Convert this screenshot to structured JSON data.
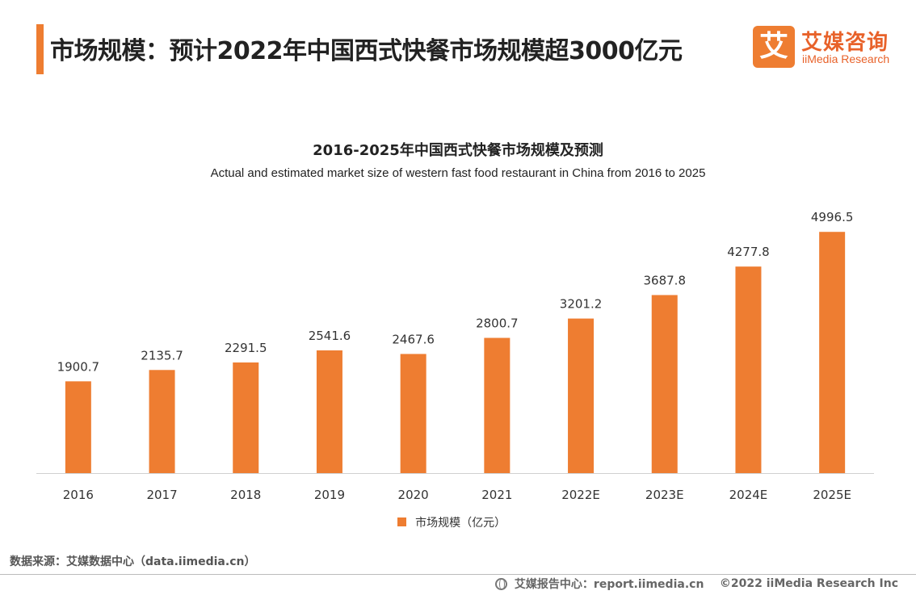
{
  "header": {
    "title": "市场规模：预计2022年中国西式快餐市场规模超3000亿元"
  },
  "logo": {
    "glyph": "艾",
    "cn": "艾媒咨询",
    "en": "iiMedia Research"
  },
  "colors": {
    "accent": "#ee7d31",
    "bar": "#ee7d31"
  },
  "chart_data": {
    "type": "bar",
    "title": "2016-2025年中国西式快餐市场规模及预测",
    "subtitle": "Actual and estimated market size of western fast food restaurant in China from 2016 to 2025",
    "categories": [
      "2016",
      "2017",
      "2018",
      "2019",
      "2020",
      "2021",
      "2022E",
      "2023E",
      "2024E",
      "2025E"
    ],
    "series": [
      {
        "name": "市场规模（亿元）",
        "values": [
          1900.7,
          2135.7,
          2291.5,
          2541.6,
          2467.6,
          2800.7,
          3201.2,
          3687.8,
          4277.8,
          4996.5
        ],
        "labels": [
          "1900.7",
          "2135.7",
          "2291.5",
          "2541.6",
          "2467.6",
          "2800.7",
          "3201.2",
          "3687.8",
          "4277.8",
          "4996.5"
        ]
      }
    ],
    "ylim": [
      0,
      5000
    ],
    "grid": false,
    "legend": "bottom"
  },
  "footer": {
    "source": "数据来源：艾媒数据中心（data.iimedia.cn）",
    "report": "艾媒报告中心：report.iimedia.cn",
    "copyright": "©2022 iiMedia Research Inc"
  }
}
